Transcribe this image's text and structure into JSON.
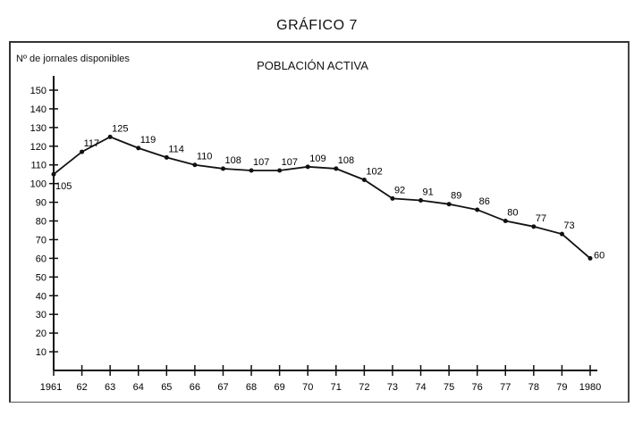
{
  "chart_data": {
    "type": "line",
    "title": "GRÁFICO 7",
    "subtitle": "POBLACIÓN ACTIVA",
    "ylabel": "Nº de jornales disponibles",
    "xlabel": "",
    "categories": [
      "1961",
      "62",
      "63",
      "64",
      "65",
      "66",
      "67",
      "68",
      "69",
      "70",
      "71",
      "72",
      "73",
      "74",
      "75",
      "76",
      "77",
      "78",
      "79",
      "1980"
    ],
    "values": [
      105,
      117,
      125,
      119,
      114,
      110,
      108,
      107,
      107,
      109,
      108,
      102,
      92,
      91,
      89,
      86,
      80,
      77,
      73,
      60
    ],
    "ylim": [
      0,
      150
    ],
    "yticks": [
      10,
      20,
      30,
      40,
      50,
      60,
      70,
      80,
      90,
      100,
      110,
      120,
      130,
      140,
      150
    ],
    "grid": false,
    "line_color": "#111111"
  }
}
